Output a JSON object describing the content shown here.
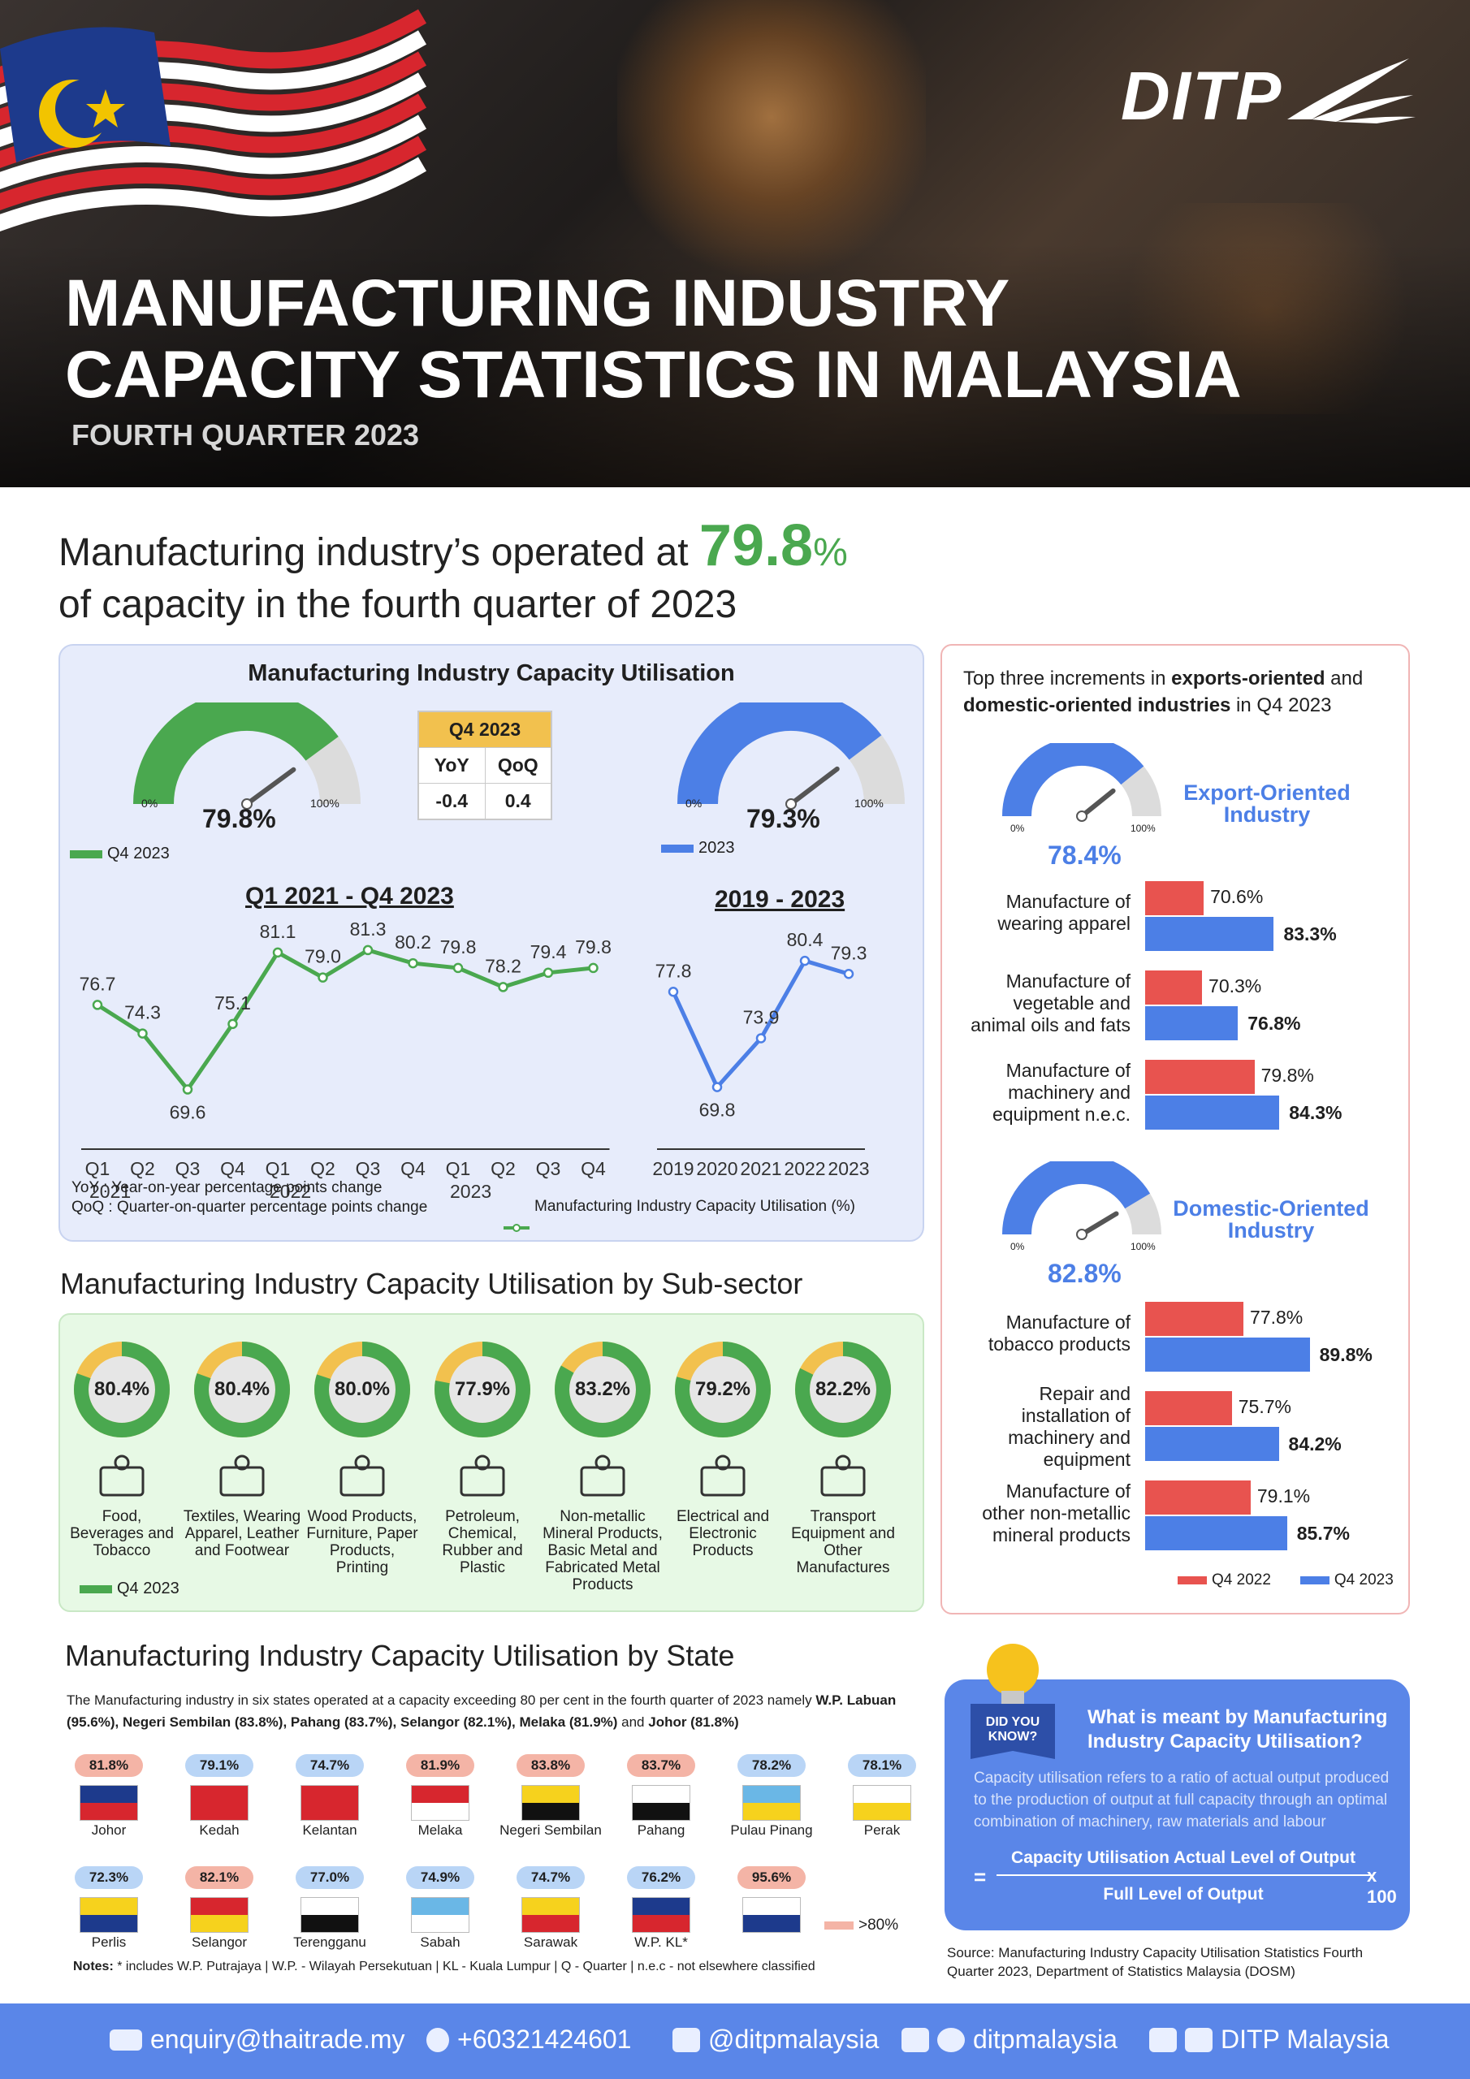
{
  "brand": "DITP",
  "hero": {
    "title_line1": "MANUFACTURING INDUSTRY",
    "title_line2": "CAPACITY STATISTICS IN MALAYSIA",
    "subtitle": "FOURTH QUARTER 2023"
  },
  "headline": {
    "pre": "Manufacturing industry’s operated at",
    "value": "79.8",
    "pct": "%",
    "post": "of capacity in the fourth quarter of 2023"
  },
  "cu_panel": {
    "title": "Manufacturing Industry Capacity Utilisation",
    "gauge_q": {
      "value": "79.8%",
      "fraction": 0.798,
      "min": "0%",
      "max": "100%",
      "legend": "Q4 2023"
    },
    "gauge_y": {
      "value": "79.3%",
      "fraction": 0.793,
      "min": "0%",
      "max": "100%",
      "legend": "2023"
    },
    "qtable": {
      "header": "Q4 2023",
      "col1": "YoY",
      "col2": "QoQ",
      "v1": "-0.4",
      "v2": "0.4"
    },
    "notes": [
      "YoY : Year-on-year percentage points change",
      "QoQ : Quarter-on-quarter percentage points change"
    ],
    "series_label": "Manufacturing Industry Capacity Utilisation (%)",
    "colors": {
      "green": "#4aa84f",
      "blue": "#4c7fe6"
    }
  },
  "chart_data": [
    {
      "type": "line",
      "title": "Q1 2021 - Q4 2023",
      "categories": [
        "Q1",
        "Q2",
        "Q3",
        "Q4",
        "Q1",
        "Q2",
        "Q3",
        "Q4",
        "Q1",
        "Q2",
        "Q3",
        "Q4"
      ],
      "years": [
        "2021",
        "2022",
        "2023"
      ],
      "values": [
        76.7,
        74.3,
        69.6,
        75.1,
        81.1,
        79.0,
        81.3,
        80.2,
        79.8,
        78.2,
        79.4,
        79.8
      ],
      "labels": [
        "76.7",
        "74.3",
        "69.6",
        "75.1",
        "81.1",
        "79.0",
        "81.3",
        "80.2",
        "79.8",
        "78.2",
        "79.4",
        "79.8"
      ],
      "color": "#4aa84f"
    },
    {
      "type": "line",
      "title": "2019 - 2023",
      "categories": [
        "2019",
        "2020",
        "2021",
        "2022",
        "2023"
      ],
      "values": [
        77.8,
        69.8,
        73.9,
        80.4,
        79.3
      ],
      "labels": [
        "77.8",
        "69.8",
        "73.9",
        "80.4",
        "79.3"
      ],
      "color": "#4c7fe6"
    },
    {
      "type": "bar",
      "title": "Export-Oriented Industry",
      "categories": [
        "Manufacture of wearing apparel",
        "Manufacture of vegetable and animal oils and fats",
        "Manufacture of machinery and equipment n.e.c."
      ],
      "series": [
        {
          "name": "Q4 2022",
          "values": [
            70.6,
            70.3,
            79.8
          ]
        },
        {
          "name": "Q4 2023",
          "values": [
            83.3,
            76.8,
            84.3
          ]
        }
      ]
    },
    {
      "type": "bar",
      "title": "Domestic-Oriented Industry",
      "categories": [
        "Manufacture of tobacco products",
        "Repair and installation of machinery and equipment",
        "Manufacture of other non-metallic mineral products"
      ],
      "series": [
        {
          "name": "Q4 2022",
          "values": [
            77.8,
            75.7,
            79.1
          ]
        },
        {
          "name": "Q4 2023",
          "values": [
            89.8,
            84.2,
            85.7
          ]
        }
      ]
    }
  ],
  "top_panel": {
    "intro_pre": "Top three increments in ",
    "intro_b1": "exports-oriented",
    "intro_mid": " and ",
    "intro_b2": "domestic-oriented industries",
    "intro_post": " in Q4 2023",
    "export": {
      "title1": "Export-Oriented",
      "title2": "Industry",
      "value": "78.4%",
      "fraction": 0.784,
      "items": [
        {
          "l1": "Manufacture of",
          "l2": "wearing apparel",
          "l3": "",
          "a": "70.6%",
          "b": "83.3%"
        },
        {
          "l1": "Manufacture of",
          "l2": "vegetable and",
          "l3": "animal oils and fats",
          "a": "70.3%",
          "b": "76.8%"
        },
        {
          "l1": "Manufacture of",
          "l2": "machinery and",
          "l3": "equipment n.e.c.",
          "a": "79.8%",
          "b": "84.3%"
        }
      ]
    },
    "domestic": {
      "title1": "Domestic-Oriented",
      "title2": "Industry",
      "value": "82.8%",
      "fraction": 0.828,
      "items": [
        {
          "l1": "Manufacture of",
          "l2": "tobacco products",
          "l3": "",
          "l4": "",
          "a": "77.8%",
          "b": "89.8%"
        },
        {
          "l1": "Repair and",
          "l2": "installation of",
          "l3": "machinery and",
          "l4": "equipment",
          "a": "75.7%",
          "b": "84.2%"
        },
        {
          "l1": "Manufacture of",
          "l2": "other non-metallic",
          "l3": "mineral products",
          "l4": "",
          "a": "79.1%",
          "b": "85.7%"
        }
      ]
    },
    "legend_a": "Q4 2022",
    "legend_b": "Q4 2023",
    "color_a": "#e8534f",
    "color_b": "#4c7fe6"
  },
  "subsector": {
    "title": "Manufacturing Industry Capacity Utilisation by Sub-sector",
    "legend": "Q4 2023",
    "items": [
      {
        "value": "80.4%",
        "pct": 80.4,
        "l1": "Food,",
        "l2": "Beverages and",
        "l3": "Tobacco",
        "l4": "",
        "icon": "food-icon"
      },
      {
        "value": "80.4%",
        "pct": 80.4,
        "l1": "Textiles, Wearing",
        "l2": "Apparel, Leather",
        "l3": "and Footwear",
        "l4": "",
        "icon": "shirt-icon"
      },
      {
        "value": "80.0%",
        "pct": 80.0,
        "l1": "Wood Products,",
        "l2": "Furniture, Paper",
        "l3": "Products,",
        "l4": "Printing",
        "icon": "furniture-icon"
      },
      {
        "value": "77.9%",
        "pct": 77.9,
        "l1": "Petroleum,",
        "l2": "Chemical,",
        "l3": "Rubber and",
        "l4": "Plastic",
        "icon": "refinery-icon"
      },
      {
        "value": "83.2%",
        "pct": 83.2,
        "l1": "Non-metallic",
        "l2": "Mineral Products,",
        "l3": "Basic Metal and",
        "l4": "Fabricated Metal",
        "l5": "Products",
        "icon": "metal-icon"
      },
      {
        "value": "79.2%",
        "pct": 79.2,
        "l1": "Electrical and",
        "l2": "Electronic",
        "l3": "Products",
        "l4": "",
        "icon": "electronics-icon"
      },
      {
        "value": "82.2%",
        "pct": 82.2,
        "l1": "Transport",
        "l2": "Equipment and",
        "l3": "Other",
        "l4": "Manufactures",
        "icon": "car-icon"
      }
    ]
  },
  "state": {
    "title": "Manufacturing Industry Capacity Utilisation by State",
    "intro": "The Manufacturing industry in six states operated at a capacity exceeding 80 per cent in the fourth quarter of 2023 namely ",
    "intro_b1": "W.P. Labuan (95.6%),",
    "intro_b2": "Negeri Sembilan (83.8%),",
    "intro_b3": "Pahang (83.7%),",
    "intro_b4": "Selangor (82.1%),",
    "intro_b5": "Melaka (81.9%)",
    "intro_and": " and ",
    "intro_b6": "Johor (81.8%)",
    "items": [
      {
        "name": "Johor",
        "value": "81.8%",
        "high": true,
        "flag": "johor"
      },
      {
        "name": "Kedah",
        "value": "79.1%",
        "high": false,
        "flag": "kedah"
      },
      {
        "name": "Kelantan",
        "value": "74.7%",
        "high": false,
        "flag": "kelantan"
      },
      {
        "name": "Melaka",
        "value": "81.9%",
        "high": true,
        "flag": "melaka"
      },
      {
        "name": "Negeri Sembilan",
        "value": "83.8%",
        "high": true,
        "flag": "ns"
      },
      {
        "name": "Pahang",
        "value": "83.7%",
        "high": true,
        "flag": "pahang"
      },
      {
        "name": "Pulau Pinang",
        "value": "78.2%",
        "high": false,
        "flag": "penang"
      },
      {
        "name": "Perak",
        "value": "78.1%",
        "high": false,
        "flag": "perak"
      },
      {
        "name": "Perlis",
        "value": "72.3%",
        "high": false,
        "flag": "perlis"
      },
      {
        "name": "Selangor",
        "value": "82.1%",
        "high": true,
        "flag": "selangor"
      },
      {
        "name": "Terengganu",
        "value": "77.0%",
        "high": false,
        "flag": "terengganu"
      },
      {
        "name": "Sabah",
        "value": "74.9%",
        "high": false,
        "flag": "sabah"
      },
      {
        "name": "Sarawak",
        "value": "74.7%",
        "high": false,
        "flag": "sarawak"
      },
      {
        "name": "W.P. KL*",
        "value": "76.2%",
        "high": false,
        "flag": "kl"
      },
      {
        "name": "",
        "value": "95.6%",
        "high": true,
        "flag": "labuan"
      }
    ],
    "legend_high": ">80%",
    "notes_label": "Notes:",
    "notes": "* includes W.P. Putrajaya  |  W.P. - Wilayah Persekutuan  |  KL - Kuala Lumpur  |  Q - Quarter  |  n.e.c - not elsewhere classified"
  },
  "dyk": {
    "badge1": "DID YOU",
    "badge2": "KNOW?",
    "question": "What is meant by Manufacturing Industry Capacity Utilisation?",
    "desc": "Capacity utilisation refers to a ratio of actual output produced to the production of output at full capacity through an optimal combination of machinery, raw materials and labour",
    "numerator": "Capacity Utilisation Actual Level of Output",
    "denominator": "Full Level of Output",
    "eq": "=",
    "times": "x 100"
  },
  "source": "Source: Manufacturing Industry Capacity Utilisation Statistics Fourth Quarter 2023, Department of Statistics Malaysia (DOSM)",
  "footer": {
    "email": "enquiry@thaitrade.my",
    "phone": "+60321424601",
    "line": "@ditpmalaysia",
    "wechat": "ditpmalaysia",
    "social": "DITP Malaysia"
  }
}
